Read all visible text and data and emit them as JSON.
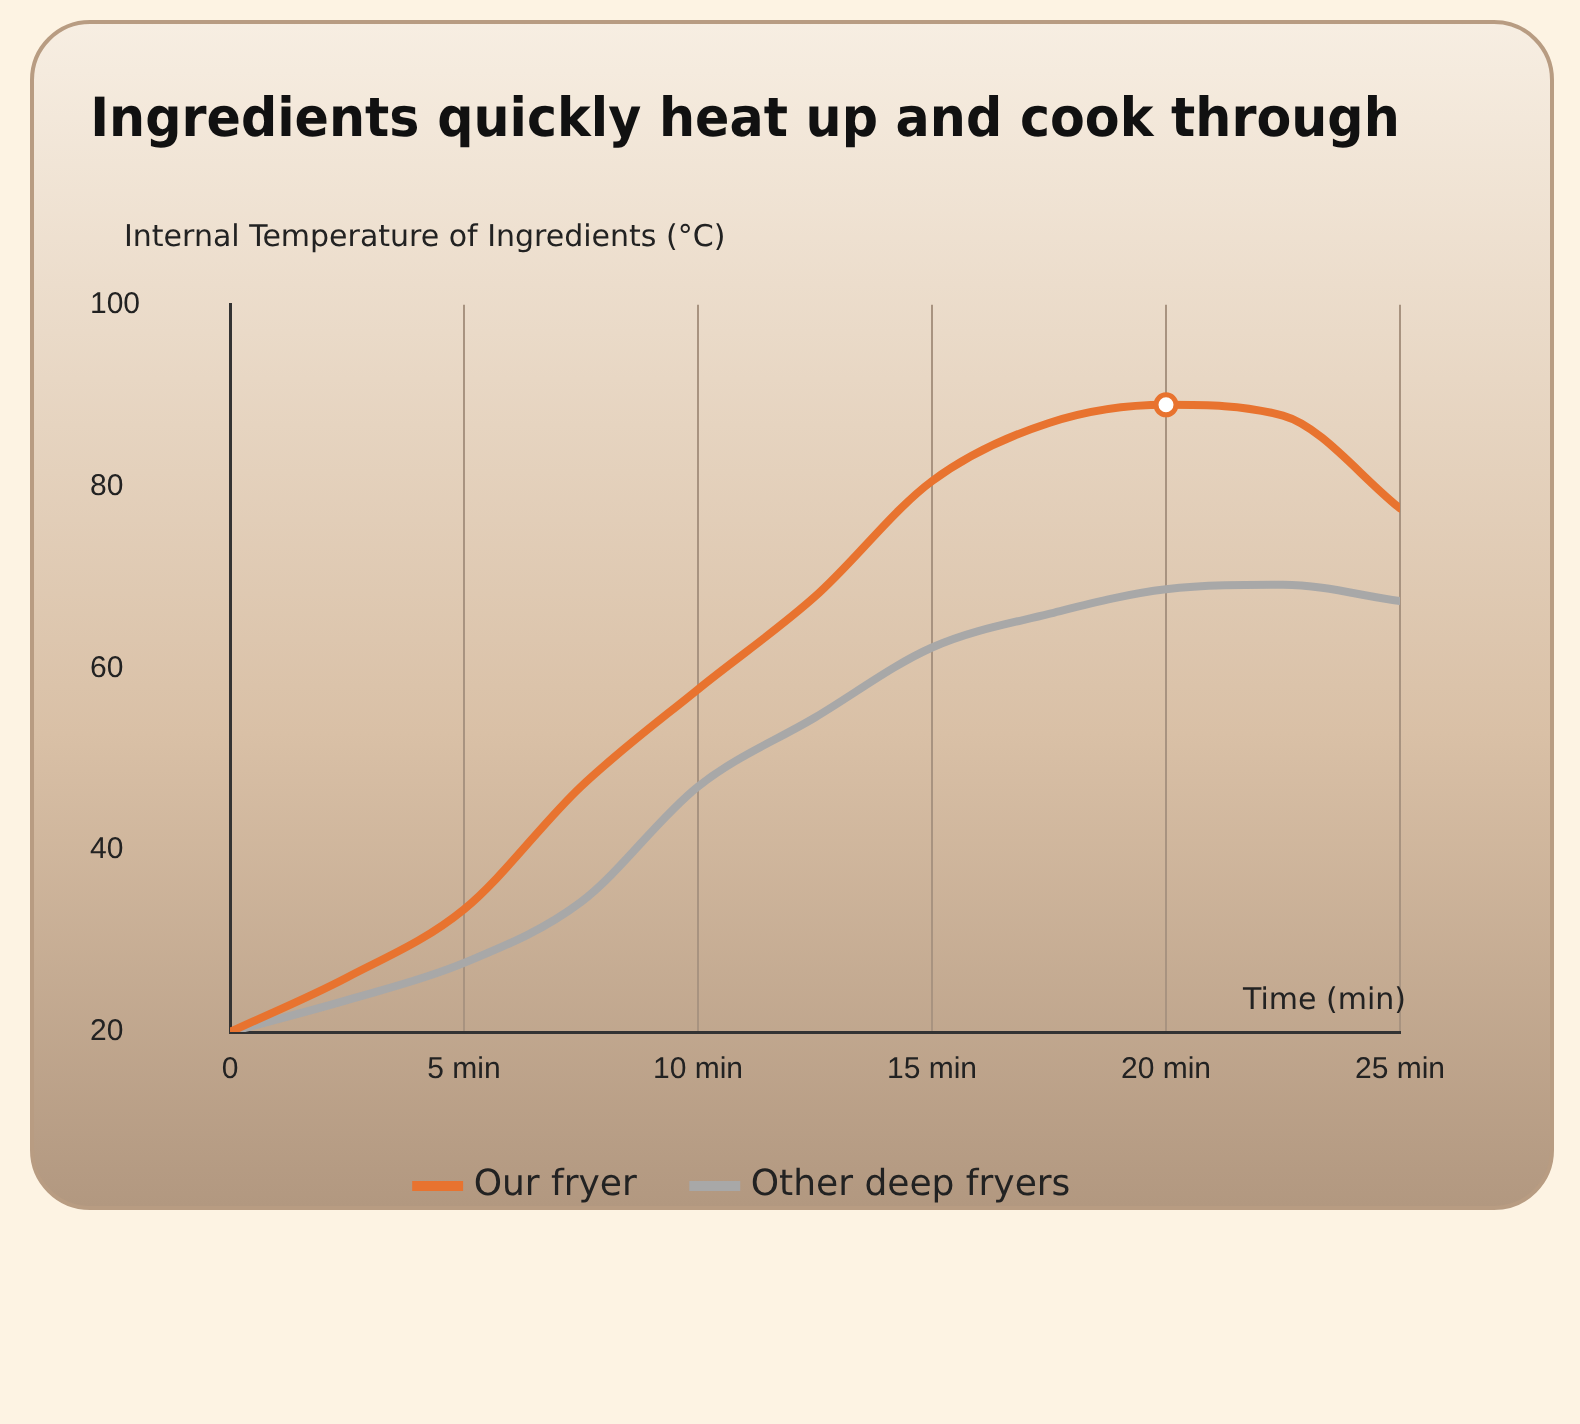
{
  "chart_data": {
    "type": "line",
    "title": "Ingredients quickly heat up and cook through",
    "xlabel": "Time (min)",
    "ylabel": "Internal Temperature of Ingredients (°C)",
    "x": [
      0,
      2.5,
      5,
      7.5,
      10,
      12.5,
      15,
      17.5,
      20,
      22.5,
      25
    ],
    "series": [
      {
        "name": "Our fryer",
        "color": "#e8732f",
        "values": [
          20,
          26,
          33.5,
          47,
          57.7,
          67.9,
          80.6,
          87,
          89,
          87.8,
          77.6
        ]
      },
      {
        "name": "Other deep fryers",
        "color": "#a8a8a8",
        "values": [
          20,
          23.5,
          27.6,
          34.3,
          47,
          54.6,
          62.3,
          66,
          68.7,
          69.2,
          67.4
        ]
      },
      {
        "type": "scatter",
        "color": "#ffffff",
        "marker": "circle",
        "x": [
          20
        ],
        "values": [
          89
        ]
      }
    ],
    "xlim": [
      0,
      25
    ],
    "xticks": [
      0,
      {
        "value": 5,
        "label": "5 min"
      },
      {
        "value": 10,
        "label": "10 min"
      },
      {
        "value": 15,
        "label": "15 min"
      },
      {
        "value": 20,
        "label": "20 min"
      },
      {
        "value": 25,
        "label": "25 min"
      }
    ],
    "ylim": [
      20,
      100
    ],
    "yticks": [
      20,
      40,
      60,
      80,
      100
    ],
    "grid": "x",
    "legend": "bottom",
    "marker": "none"
  }
}
